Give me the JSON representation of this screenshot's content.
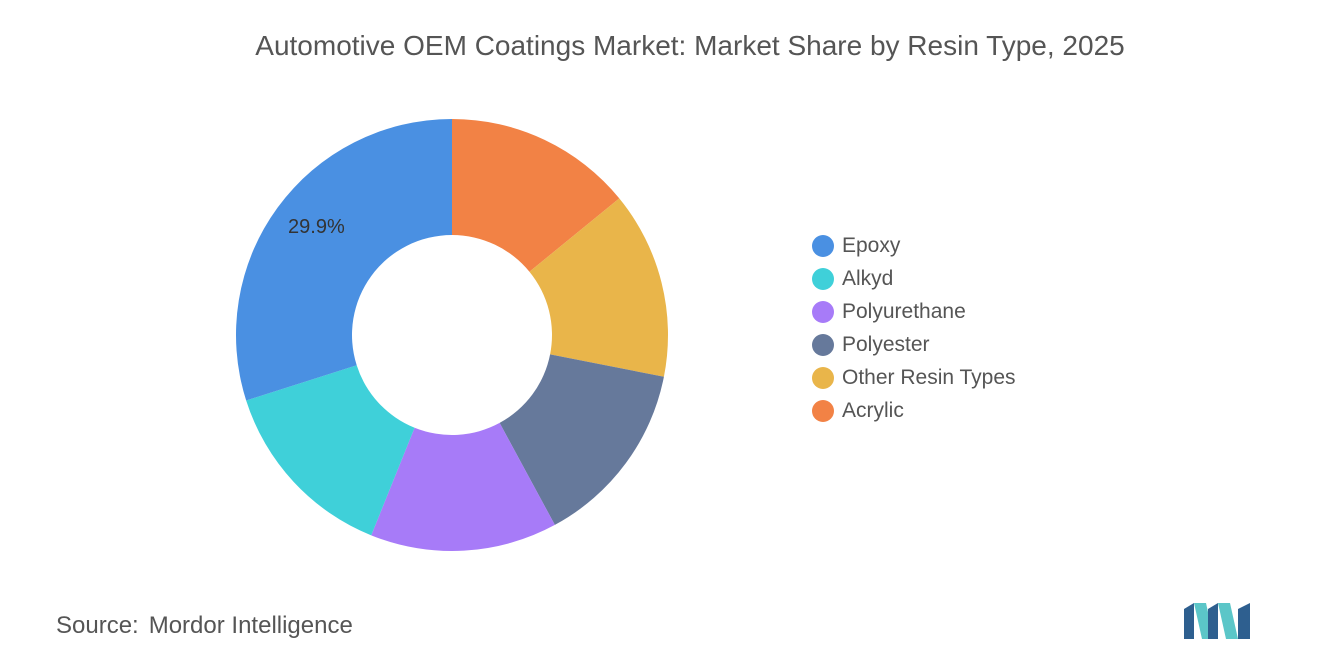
{
  "chart_data": {
    "type": "pie",
    "title": "Automotive OEM Coatings Market: Market Share by Resin Type, 2025",
    "categories": [
      "Epoxy",
      "Alkyd",
      "Polyurethane",
      "Polyester",
      "Other Resin Types",
      "Acrylic"
    ],
    "values": [
      29.9,
      14.0,
      14.0,
      14.0,
      14.0,
      14.1
    ],
    "colors": [
      "#4A90E2",
      "#3FD0D9",
      "#A77BF8",
      "#66799B",
      "#E9B54A",
      "#F28245"
    ],
    "data_labels": [
      "29.9%",
      "",
      "",
      "",
      "",
      ""
    ],
    "donut": true,
    "legend_position": "right"
  },
  "source": {
    "label": "Source:",
    "value": "Mordor Intelligence"
  },
  "logo": {
    "icon": "mordor-intelligence-logo",
    "colors": [
      "#2E5F8F",
      "#5BC6C8"
    ]
  }
}
